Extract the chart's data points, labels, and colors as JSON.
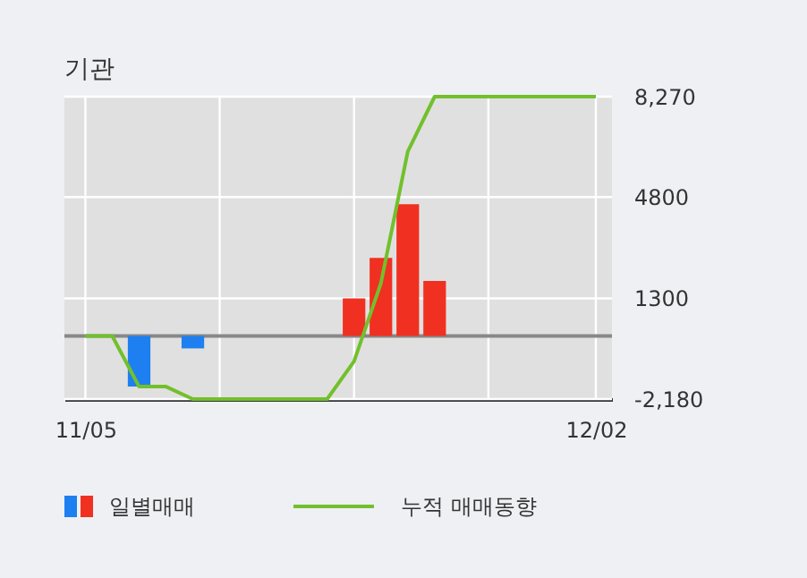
{
  "chart_data": {
    "type": "bar",
    "title": "기관",
    "categories": [
      "11/05",
      null,
      null,
      null,
      null,
      null,
      null,
      null,
      null,
      null,
      null,
      null,
      null,
      null,
      null,
      null,
      null,
      null,
      null,
      "12/02"
    ],
    "series": [
      {
        "name": "일별매매",
        "colors": [
          null,
          null,
          "#1e7ff0",
          null,
          "#1e7ff0",
          null,
          null,
          null,
          null,
          null,
          "#f03020",
          "#f03020",
          "#f03020",
          "#f03020",
          null,
          null,
          null,
          null,
          null,
          null
        ],
        "values": [
          null,
          null,
          -1750,
          null,
          -430,
          null,
          null,
          null,
          null,
          null,
          1300,
          2700,
          4550,
          1900,
          null,
          null,
          null,
          null,
          null,
          null
        ]
      },
      {
        "name": "누적 매매동향",
        "type": "line",
        "color": "#72c02c",
        "values": [
          0,
          0,
          -1750,
          -1750,
          -2180,
          -2180,
          -2180,
          -2180,
          -2180,
          -2180,
          -880,
          1820,
          6370,
          8270,
          8270,
          8270,
          8270,
          8270,
          8270,
          8270
        ]
      }
    ],
    "ylim": [
      -2180,
      8270
    ],
    "yticks": [
      {
        "value": 8270,
        "label": "8,270"
      },
      4800,
      1300,
      {
        "value": -2180,
        "label": "-2,180"
      }
    ],
    "ref_lines": [
      {
        "axis": "y",
        "value": 0,
        "color": "#888888"
      }
    ],
    "grid": true,
    "legend": "bottom"
  }
}
